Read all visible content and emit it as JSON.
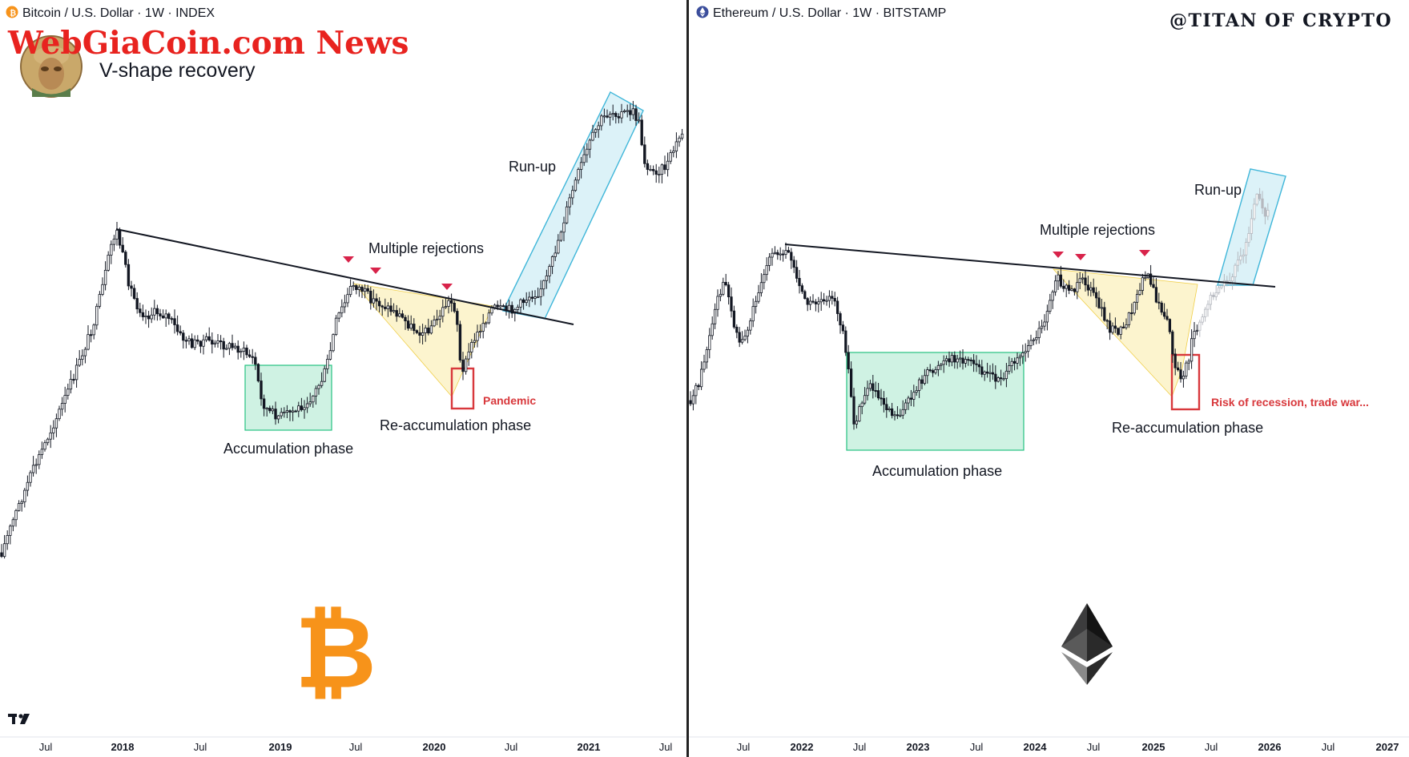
{
  "watermark": {
    "text": "WebGiaCoin.com News",
    "color": "#e8231f"
  },
  "credit": "@TITAN OF CRYPTO",
  "logo_icon": "tradingview-logo-icon",
  "colors": {
    "accumulation": "#26c281",
    "reaccumulation": "#f5dd6a",
    "runup": "#3fb6d9",
    "crash_box": "#d8383c",
    "rejection_marker": "#d8234a",
    "bitcoin": "#f7931a",
    "ethereum": "#3c3c3d"
  },
  "chart_data": [
    {
      "type": "candlestick",
      "header": "Bitcoin / U.S. Dollar · 1W · INDEX",
      "subtitle": "V-shape recovery",
      "icon": "bitcoin-icon",
      "x_ticks": [
        "Jul",
        "2018",
        "Jul",
        "2019",
        "Jul",
        "2020",
        "Jul",
        "2021",
        "Jul"
      ],
      "annotations": {
        "accumulation": "Accumulation phase",
        "reaccumulation": "Re-accumulation phase",
        "rejections": "Multiple rejections",
        "runup": "Run-up",
        "event": "Pandemic"
      },
      "markers": [
        "rejection",
        "rejection",
        "rejection"
      ]
    },
    {
      "type": "candlestick",
      "header": "Ethereum / U.S. Dollar · 1W · BITSTAMP",
      "icon": "ethereum-icon",
      "x_ticks": [
        "Jul",
        "2022",
        "Jul",
        "2023",
        "Jul",
        "2024",
        "Jul",
        "2025",
        "Jul",
        "2026",
        "Jul",
        "2027"
      ],
      "annotations": {
        "accumulation": "Accumulation phase",
        "reaccumulation": "Re-accumulation phase",
        "rejections": "Multiple rejections",
        "runup": "Run-up",
        "event": "Risk of recession, trade war..."
      },
      "markers": [
        "rejection",
        "rejection",
        "rejection"
      ]
    }
  ]
}
